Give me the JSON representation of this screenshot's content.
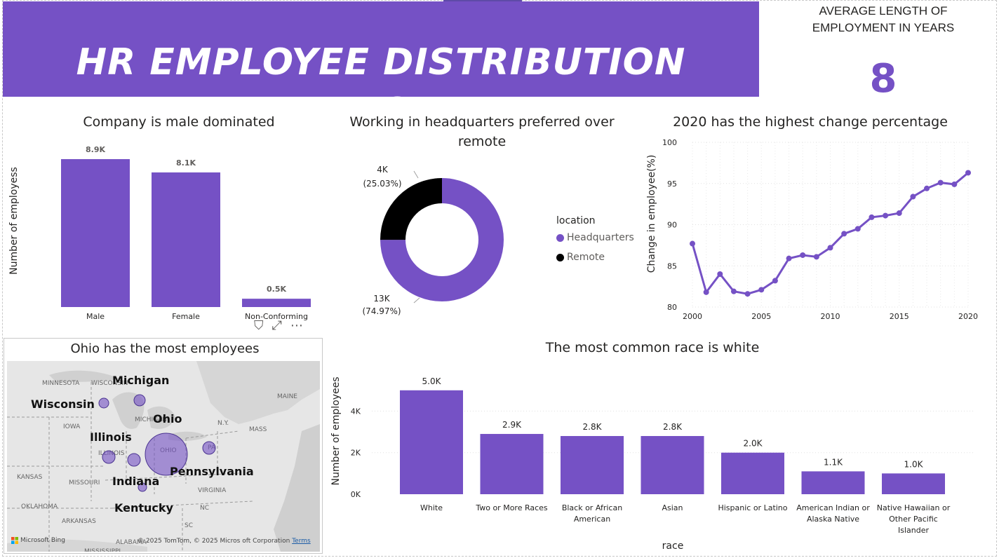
{
  "header": {
    "title": "HR EMPLOYEE DISTRIBUTION REPORT"
  },
  "kpi": {
    "label_line1": "AVERAGE LENGTH OF",
    "label_line2": "EMPLOYMENT IN YEARS",
    "value": "8"
  },
  "colors": {
    "accent": "#7551c5",
    "remote": "#000000",
    "banner": "#7551c5"
  },
  "chart_data": [
    {
      "id": "gender",
      "type": "bar",
      "title": "Company is male dominated",
      "ylabel": "Number of employess",
      "xlabel": "",
      "categories": [
        "Male",
        "Female",
        "Non-Conforming"
      ],
      "values": [
        8.9,
        8.1,
        0.5
      ],
      "value_labels": [
        "8.9K",
        "8.1K",
        "0.5K"
      ],
      "ylim": [
        0,
        8.9
      ]
    },
    {
      "id": "location",
      "type": "pie",
      "title": "Working in headquarters preferred over remote",
      "legend_title": "location",
      "labels": [
        "Headquarters",
        "Remote"
      ],
      "values": [
        74.97,
        25.03
      ],
      "count_labels": [
        "13K",
        "4K"
      ],
      "percent_labels": [
        "(74.97%)",
        "(25.03%)"
      ],
      "legend_position": "right"
    },
    {
      "id": "change",
      "type": "line",
      "title": "2020 has the highest change percentage",
      "ylabel": "Change in employee(%)",
      "xlabel": "",
      "x": [
        2000,
        2001,
        2002,
        2003,
        2004,
        2005,
        2006,
        2007,
        2008,
        2009,
        2010,
        2011,
        2012,
        2013,
        2014,
        2015,
        2016,
        2017,
        2018,
        2019,
        2020
      ],
      "y": [
        87.7,
        81.8,
        84.0,
        81.9,
        81.6,
        82.1,
        83.2,
        85.9,
        86.3,
        86.1,
        87.2,
        88.9,
        89.5,
        90.9,
        91.1,
        91.4,
        93.4,
        94.4,
        95.1,
        94.9,
        96.3
      ],
      "xticks": [
        2000,
        2005,
        2010,
        2015,
        2020
      ],
      "xtick_labels": [
        "2000",
        "2005",
        "2010",
        "2015",
        "2020"
      ],
      "yticks": [
        80,
        85,
        90,
        95,
        100
      ],
      "ytick_labels": [
        "80",
        "85",
        "90",
        "95",
        "100"
      ],
      "xlim": [
        2000,
        2020
      ],
      "ylim": [
        80,
        100
      ],
      "grid": true
    },
    {
      "id": "race",
      "type": "bar",
      "title": "The most common race is white",
      "ylabel": "Number of employees",
      "xlabel": "race",
      "categories": [
        "White",
        "Two or More Races",
        "Black or African American",
        "Asian",
        "Hispanic or Latino",
        "American Indian or Alaska Native",
        "Native Hawaiian or Other Pacific Islander"
      ],
      "category_lines": [
        [
          "White"
        ],
        [
          "Two or More Races"
        ],
        [
          "Black or African",
          "American"
        ],
        [
          "Asian"
        ],
        [
          "Hispanic or Latino"
        ],
        [
          "American Indian or",
          "Alaska Native"
        ],
        [
          "Native Hawaiian or",
          "Other Pacific",
          "Islander"
        ]
      ],
      "values": [
        5.0,
        2.9,
        2.8,
        2.8,
        2.0,
        1.1,
        1.0
      ],
      "value_labels": [
        "5.0K",
        "2.9K",
        "2.8K",
        "2.8K",
        "2.0K",
        "1.1K",
        "1.0K"
      ],
      "yticks": [
        0,
        2,
        4
      ],
      "ytick_labels": [
        "0K",
        "2K",
        "4K"
      ],
      "ylim": [
        0,
        5.6
      ],
      "grid": true
    }
  ],
  "map": {
    "title": "Ohio has the most employees",
    "points": [
      {
        "state": "Ohio",
        "size": "largest"
      },
      {
        "state": "Michigan",
        "size": "small"
      },
      {
        "state": "Wisconsin",
        "size": "small"
      },
      {
        "state": "Illinois",
        "size": "small"
      },
      {
        "state": "Indiana",
        "size": "small"
      },
      {
        "state": "Pennsylvania",
        "size": "small"
      },
      {
        "state": "Kentucky",
        "size": "small"
      }
    ],
    "base_labels": [
      "MINNESOTA",
      "WISCONSIN",
      "MICHIGAN",
      "IOWA",
      "ILLINOIS",
      "OHIO",
      "PA",
      "N.Y.",
      "MAINE",
      "MASS",
      "KANSAS",
      "MISSOURI",
      "VIRGINIA",
      "OKLAHOMA",
      "ARKANSAS",
      "NC",
      "SC",
      "ALABAMA",
      "MISSISSIPPI"
    ],
    "attribution": "Microsoft Bing",
    "copyright": "© 2025 TomTom, © 2025 Micros oft Corporation",
    "terms": "Terms"
  }
}
